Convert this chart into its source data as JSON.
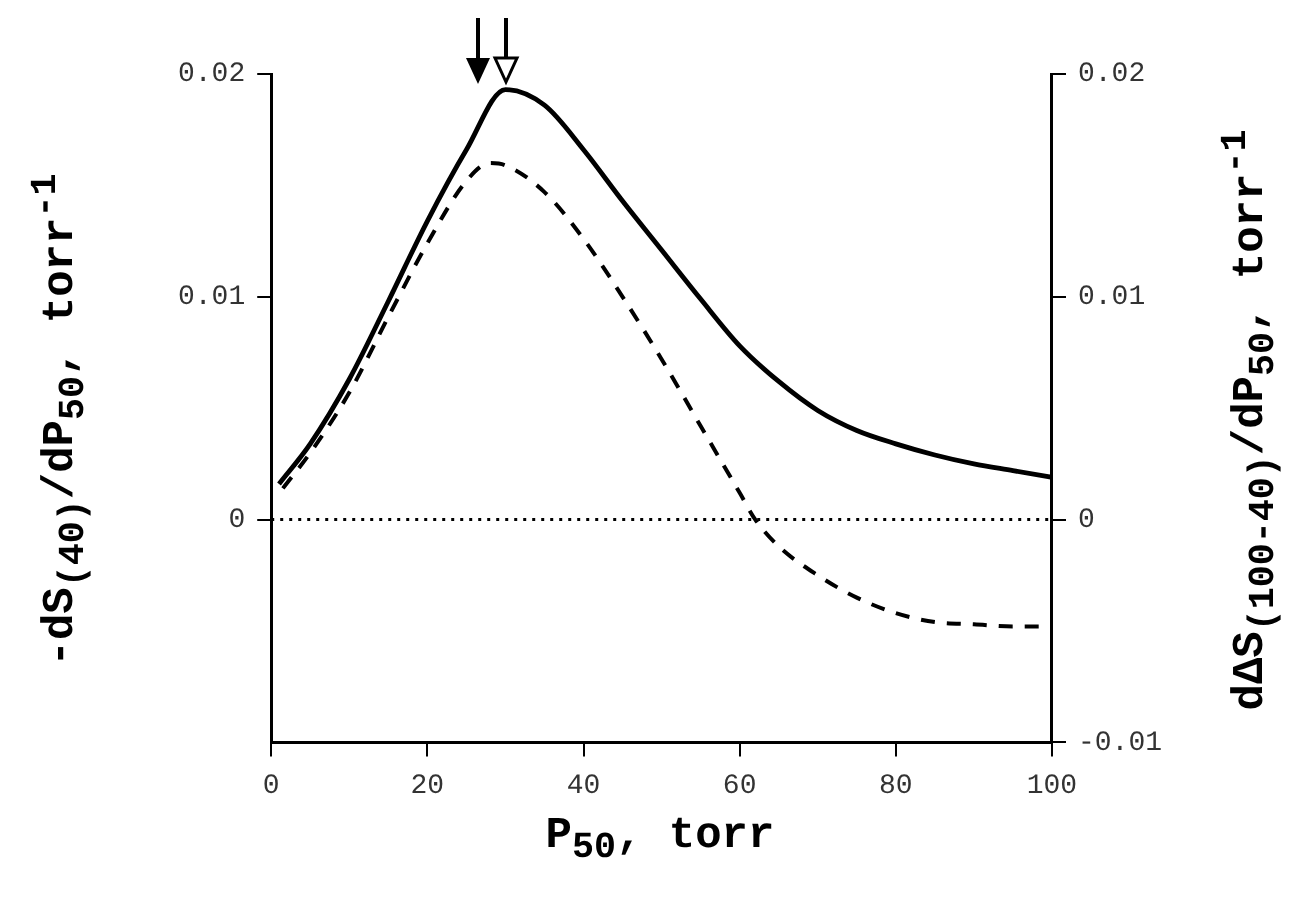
{
  "chart_data": {
    "type": "line",
    "xlabel": "P$_{50}$, torr",
    "ylabel": "-dS$_{(40)}$/dP$_{50}$, torr$^{-1}$",
    "y2label": "dΔS$_{(100-40)}$/dP$_{50}$, torr$^{-1}$",
    "series": [
      {
        "color": "#000000",
        "line_style": "solid",
        "x": [
          1,
          5,
          10,
          15,
          20,
          25,
          30,
          35,
          40,
          45,
          50,
          55,
          60,
          65,
          70,
          75,
          80,
          85,
          90,
          95,
          100
        ],
        "values": [
          0.0016,
          0.0034,
          0.0063,
          0.0098,
          0.0134,
          0.0166,
          0.0193,
          0.0186,
          0.0166,
          0.0143,
          0.0121,
          0.0099,
          0.0078,
          0.0062,
          0.0049,
          0.004,
          0.0034,
          0.0029,
          0.0025,
          0.0022,
          0.0019
        ]
      },
      {
        "color": "#000000",
        "line_style": "dashed",
        "x": [
          1.5,
          5,
          10,
          15,
          20,
          25,
          28,
          30,
          35,
          40,
          45,
          50,
          55,
          60,
          62,
          65,
          70,
          75,
          80,
          85,
          90,
          95,
          100
        ],
        "values": [
          0.0014,
          0.003,
          0.0057,
          0.0091,
          0.0124,
          0.0152,
          0.016,
          0.0159,
          0.0147,
          0.0126,
          0.01,
          0.0072,
          0.0042,
          0.0012,
          0,
          -0.0012,
          -0.0025,
          -0.0035,
          -0.0042,
          -0.0046,
          -0.0047,
          -0.0048,
          -0.0048
        ]
      }
    ],
    "xlim": [
      0,
      100
    ],
    "xticks": [
      0,
      20,
      40,
      60,
      80,
      100
    ],
    "ylim": [
      -0.01,
      0.02
    ],
    "yticks": [
      0,
      0.01,
      0.02
    ],
    "y2lim": [
      -0.01,
      0.02
    ],
    "y2ticks": [
      -0.01,
      0,
      0.01,
      0.02
    ],
    "ref_lines": [
      {
        "axis": "y",
        "value": 0,
        "line_style": "dotted",
        "color": "#000000"
      }
    ],
    "grid": false,
    "legend": false
  }
}
